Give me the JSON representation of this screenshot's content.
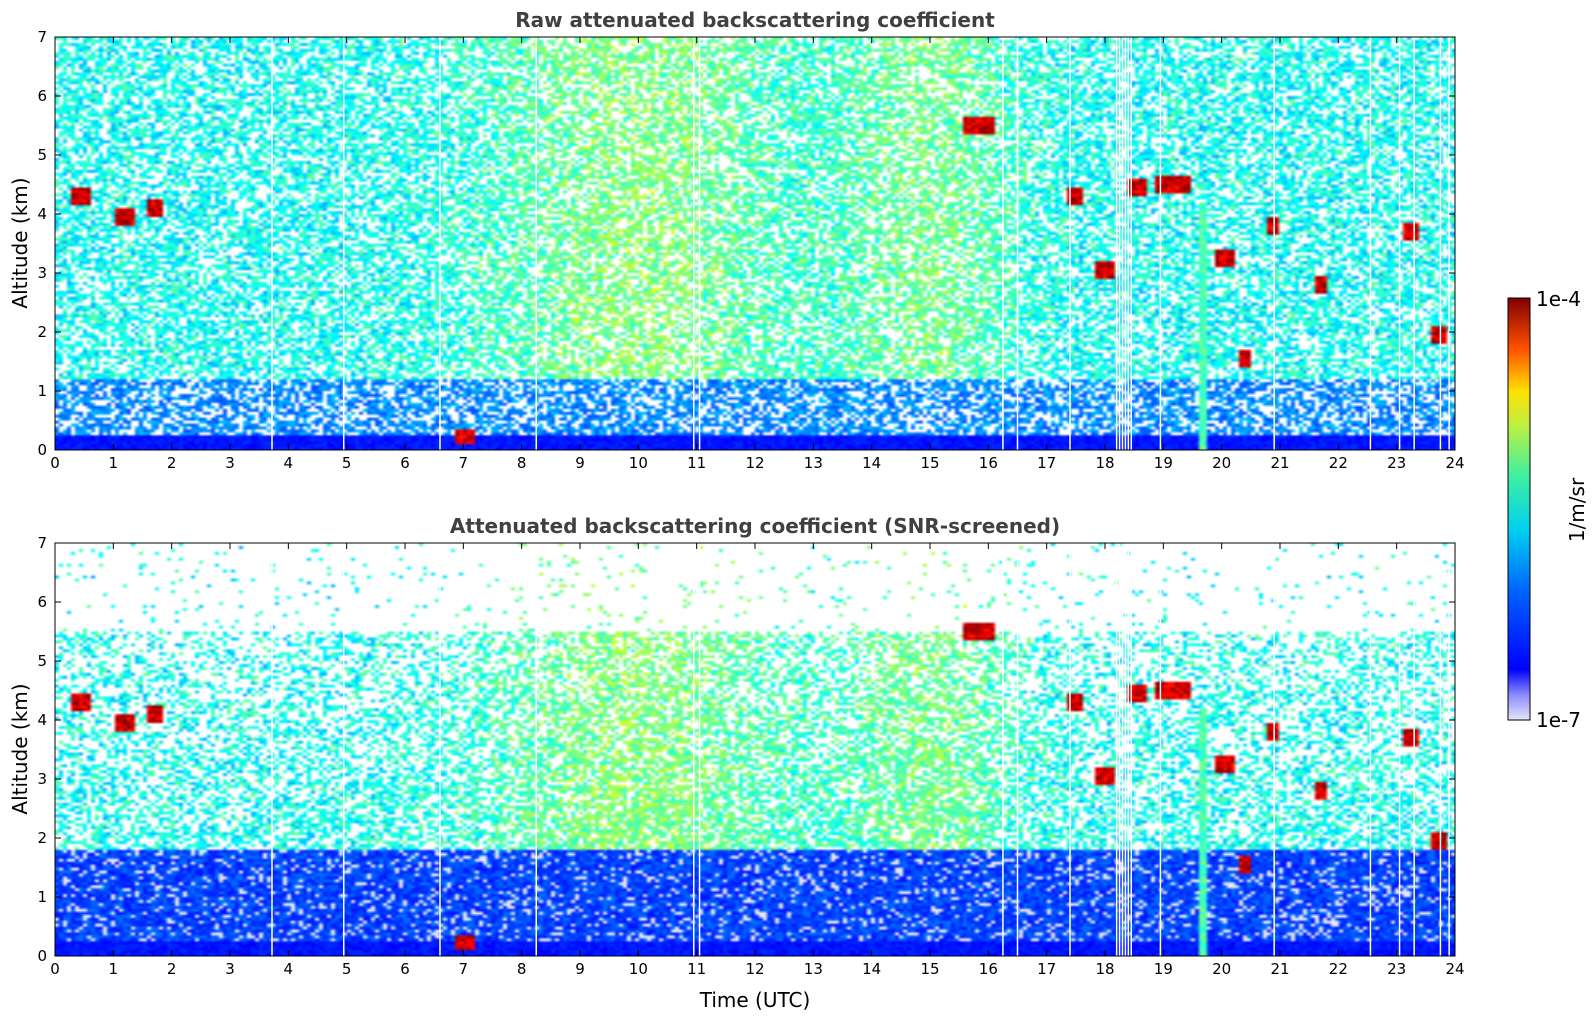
{
  "chart_data": [
    {
      "type": "heatmap",
      "title": "Raw attenuated backscattering coefficient",
      "xlabel": "",
      "ylabel": "Altitude (km)",
      "xlim": [
        0,
        24
      ],
      "ylim": [
        0,
        7
      ],
      "xticks": [
        "0",
        "1",
        "2",
        "3",
        "4",
        "5",
        "6",
        "7",
        "8",
        "9",
        "10",
        "11",
        "12",
        "13",
        "14",
        "15",
        "16",
        "17",
        "18",
        "19",
        "20",
        "21",
        "22",
        "23",
        "24"
      ],
      "yticks": [
        "0",
        "1",
        "2",
        "3",
        "4",
        "5",
        "6",
        "7"
      ],
      "screened": false
    },
    {
      "type": "heatmap",
      "title": "Attenuated backscattering coefficient (SNR-screened)",
      "xlabel": "Time (UTC)",
      "ylabel": "Altitude (km)",
      "xlim": [
        0,
        24
      ],
      "ylim": [
        0,
        7
      ],
      "xticks": [
        "0",
        "1",
        "2",
        "3",
        "4",
        "5",
        "6",
        "7",
        "8",
        "9",
        "10",
        "11",
        "12",
        "13",
        "14",
        "15",
        "16",
        "17",
        "18",
        "19",
        "20",
        "21",
        "22",
        "23",
        "24"
      ],
      "yticks": [
        "0",
        "1",
        "2",
        "3",
        "4",
        "5",
        "6",
        "7"
      ],
      "screened": true
    }
  ],
  "colorbar": {
    "label": "1/m/sr",
    "max_label": "1e-4",
    "min_label": "1e-7",
    "scale": "log",
    "range": [
      1e-07,
      0.0001
    ]
  },
  "data_gaps_utc": [
    3.72,
    4.95,
    6.6,
    8.25,
    10.95,
    11.05,
    16.25,
    16.5,
    17.4,
    18.2,
    18.25,
    18.3,
    18.35,
    18.4,
    18.45,
    18.95,
    20.9,
    22.55,
    23.05,
    23.3,
    23.75,
    23.9
  ],
  "cloud_features": [
    {
      "t0": 0.3,
      "t1": 0.65,
      "alt": 4.3
    },
    {
      "t0": 1.0,
      "t1": 1.35,
      "alt": 3.95
    },
    {
      "t0": 1.55,
      "t1": 1.85,
      "alt": 4.1
    },
    {
      "t0": 6.85,
      "t1": 7.2,
      "alt": 0.22
    },
    {
      "t0": 15.6,
      "t1": 16.1,
      "alt": 5.5
    },
    {
      "t0": 17.35,
      "t1": 17.6,
      "alt": 4.3
    },
    {
      "t0": 17.8,
      "t1": 18.15,
      "alt": 3.05
    },
    {
      "t0": 18.4,
      "t1": 18.7,
      "alt": 4.45
    },
    {
      "t0": 18.85,
      "t1": 19.45,
      "alt": 4.5
    },
    {
      "t0": 19.9,
      "t1": 20.25,
      "alt": 3.25
    },
    {
      "t0": 20.3,
      "t1": 20.5,
      "alt": 1.55
    },
    {
      "t0": 20.75,
      "t1": 20.95,
      "alt": 3.8
    },
    {
      "t0": 21.6,
      "t1": 21.8,
      "alt": 2.8
    },
    {
      "t0": 23.1,
      "t1": 23.35,
      "alt": 3.7
    },
    {
      "t0": 23.6,
      "t1": 23.85,
      "alt": 1.95
    }
  ]
}
